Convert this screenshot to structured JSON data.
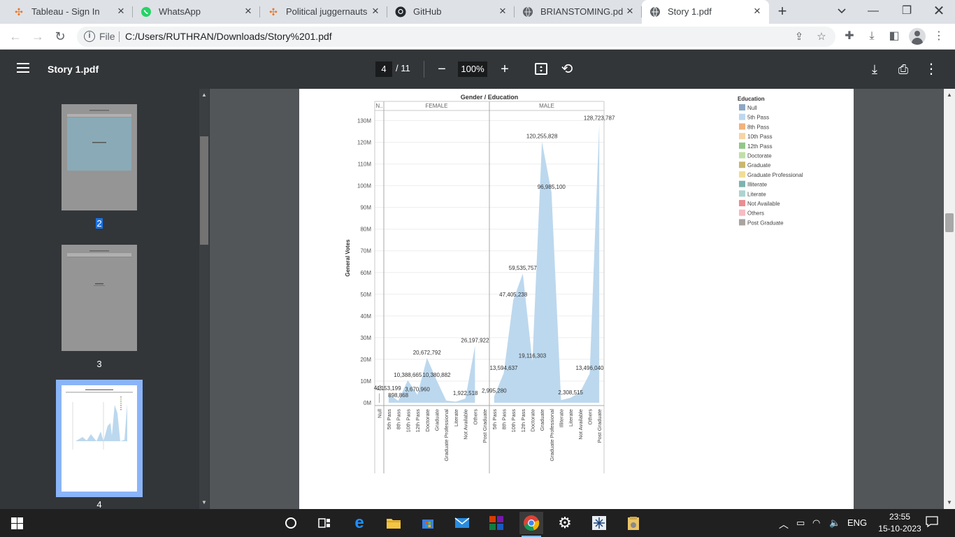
{
  "browser": {
    "tabs": [
      {
        "label": "Tableau - Sign In",
        "icon": "tableau-icon",
        "active": false
      },
      {
        "label": "WhatsApp",
        "icon": "whatsapp-icon",
        "active": false
      },
      {
        "label": "Political juggernauts |",
        "icon": "tableau-icon",
        "active": false
      },
      {
        "label": "GitHub",
        "icon": "github-icon",
        "active": false
      },
      {
        "label": "BRIANSTOMING.pdf",
        "icon": "globe-icon",
        "active": false
      },
      {
        "label": "Story 1.pdf",
        "icon": "globe-icon",
        "active": true
      }
    ],
    "scheme_label": "File",
    "url": "C:/Users/RUTHRAN/Downloads/Story%201.pdf"
  },
  "pdf_viewer": {
    "title": "Story 1.pdf",
    "current_page": "4",
    "total_pages": "/ 11",
    "zoom": "100%",
    "thumbnails": [
      {
        "number": "2",
        "selected_text": true
      },
      {
        "number": "3",
        "selected_text": false
      },
      {
        "number": "4",
        "selected_text": false
      }
    ]
  },
  "chart_data": {
    "type": "area",
    "title": "Gender / Education",
    "ylabel": "General Votes",
    "ylim": [
      0,
      130000000
    ],
    "yticks": [
      "0M",
      "10M",
      "20M",
      "30M",
      "40M",
      "50M",
      "60M",
      "70M",
      "80M",
      "90M",
      "100M",
      "110M",
      "120M",
      "130M"
    ],
    "groups": [
      {
        "name": "N..",
        "categories": [
          "Null"
        ],
        "values": [
          4300000
        ],
        "labels": [
          "4,3.."
        ]
      },
      {
        "name": "FEMALE",
        "categories": [
          "5th Pass",
          "8th Pass",
          "10th Pass",
          "12th Pass",
          "Doctorate",
          "Graduate",
          "Graduate Professional",
          "Literate",
          "Not Available",
          "Others",
          "Post Graduate"
        ],
        "values": [
          4153199,
          898868,
          10388665,
          3670960,
          20672792,
          10380882,
          1000000,
          500000,
          1922518,
          26197922,
          null
        ],
        "labels": [
          "4,153,199",
          "898,868",
          "10,388,665",
          "3,670,960",
          "20,672,792",
          "10,380,882",
          "",
          "",
          "1,922,518",
          "26,197,922",
          ""
        ]
      },
      {
        "name": "MALE",
        "categories": [
          "5th Pass",
          "8th Pass",
          "10th Pass",
          "12th Pass",
          "Doctorate",
          "Graduate",
          "Graduate Professional",
          "Illiterate",
          "Literate",
          "Not Available",
          "Others",
          "Post Graduate"
        ],
        "values": [
          2995280,
          13594637,
          47405238,
          59535757,
          19116303,
          120255828,
          96985100,
          1200000,
          2308515,
          5000000,
          13496040,
          128723787
        ],
        "labels": [
          "2,995,280",
          "13,594,637",
          "47,405,238",
          "59,535,757",
          "19,116,303",
          "120,255,828",
          "96,985,100",
          "",
          "2,308,515",
          "",
          "13,496,040",
          "128,723,787"
        ]
      }
    ],
    "legend": {
      "title": "Education",
      "items": [
        {
          "label": "Null",
          "color": "#8ca7c4"
        },
        {
          "label": "5th Pass",
          "color": "#bcd8ee"
        },
        {
          "label": "8th Pass",
          "color": "#f2b27c"
        },
        {
          "label": "10th Pass",
          "color": "#f7d4a6"
        },
        {
          "label": "12th Pass",
          "color": "#92c788"
        },
        {
          "label": "Doctorate",
          "color": "#c0dea9"
        },
        {
          "label": "Graduate",
          "color": "#c9b76f"
        },
        {
          "label": "Graduate Professional",
          "color": "#f1de94"
        },
        {
          "label": "Illiterate",
          "color": "#7db3b0"
        },
        {
          "label": "Literate",
          "color": "#acd4cf"
        },
        {
          "label": "Not Available",
          "color": "#ec8d90"
        },
        {
          "label": "Others",
          "color": "#f6bcc2"
        },
        {
          "label": "Post Graduate",
          "color": "#a9a49f"
        }
      ]
    },
    "fill_color": "#bcd8ee"
  },
  "taskbar": {
    "language": "ENG",
    "time": "23:55",
    "date": "15-10-2023"
  }
}
